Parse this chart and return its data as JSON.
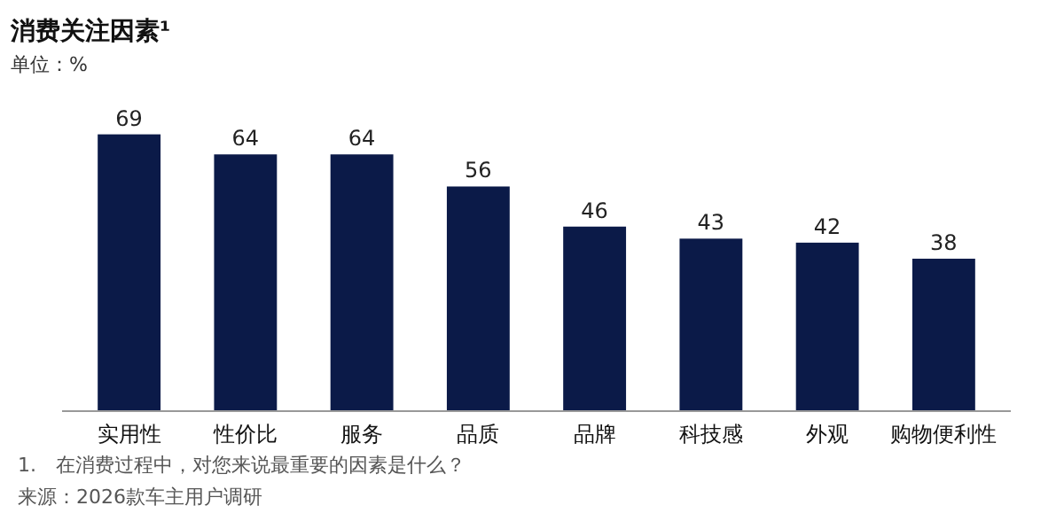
{
  "chart_data": {
    "type": "bar",
    "title": "消费关注因素¹",
    "subtitle": "单位：%",
    "categories": [
      "实用性",
      "性价比",
      "服务",
      "品质",
      "品牌",
      "科技感",
      "外观",
      "购物便利性"
    ],
    "values": [
      69,
      64,
      64,
      56,
      46,
      43,
      42,
      38
    ],
    "color": "#0b1a48",
    "data_labels": true,
    "annotations": [
      "1.　在消费过程中，对您来说最重要的因素是什么？",
      "来源：2026款车主用户调研"
    ]
  }
}
